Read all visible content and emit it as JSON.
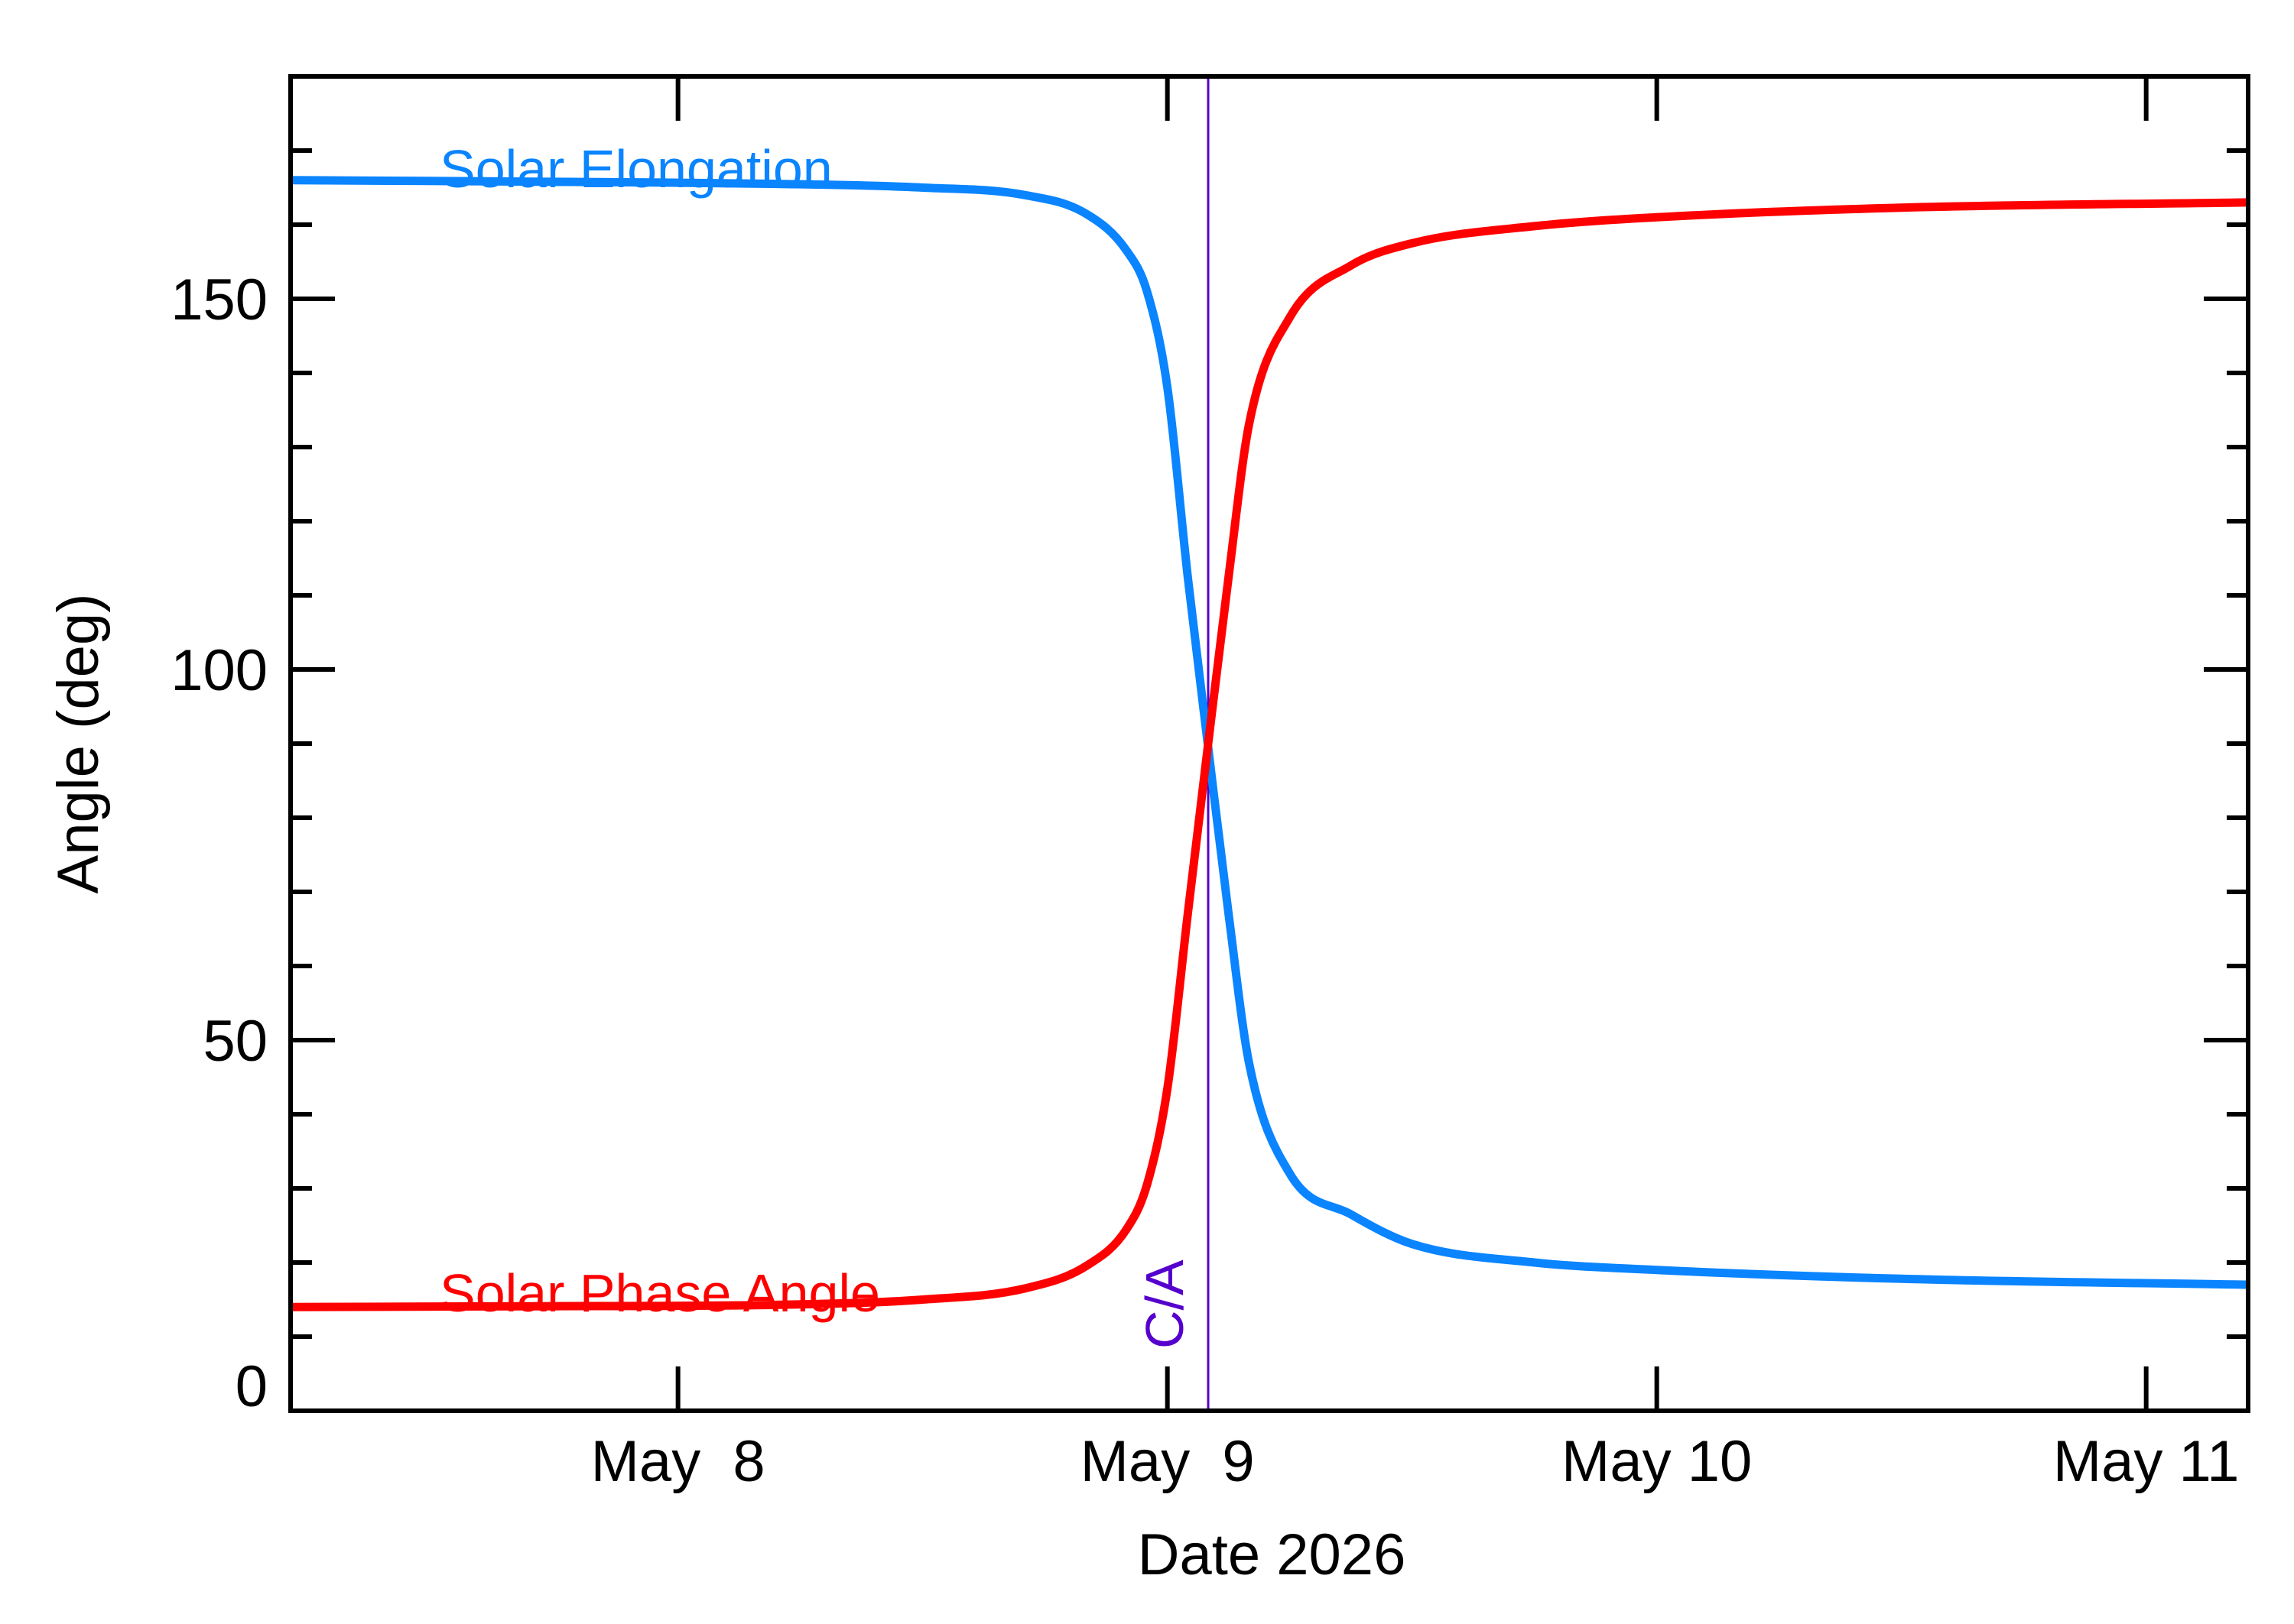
{
  "chart_data": {
    "type": "line",
    "xlabel": "Date 2026",
    "ylabel": "Angle (deg)",
    "x_axis": {
      "start": "2026-05-07 05:00",
      "end": "2026-05-11 05:00",
      "tick_labels": [
        "May  8",
        "May  9",
        "May 10",
        "May 11"
      ],
      "tick_dates": [
        "2026-05-08",
        "2026-05-09",
        "2026-05-10",
        "2026-05-11"
      ],
      "minor_ticks": "none"
    },
    "y_axis": {
      "ylim": [
        0,
        180
      ],
      "major_ticks": [
        0,
        50,
        100,
        150
      ],
      "tick_labels": [
        "0",
        "50",
        "100",
        "150"
      ],
      "minor_step": 10
    },
    "grid": false,
    "legend": "inline text labels near the left of each curve",
    "closest_approach": {
      "label": "C/A",
      "date": "2026-05-09 02:00",
      "color": "#5500cc"
    },
    "series": [
      {
        "name": "Solar Elongation",
        "color": "#0a84ff",
        "points": [
          [
            "2026-05-07 05:00",
            166.0
          ],
          [
            "2026-05-07 17:00",
            165.8
          ],
          [
            "2026-05-08 05:00",
            165.5
          ],
          [
            "2026-05-08 12:00",
            165.0
          ],
          [
            "2026-05-08 17:00",
            164.0
          ],
          [
            "2026-05-08 20:00",
            161.5
          ],
          [
            "2026-05-08 22:00",
            156.5
          ],
          [
            "2026-05-08 23:00",
            151.0
          ],
          [
            "2026-05-09 00:00",
            138.0
          ],
          [
            "2026-05-09 01:00",
            112.5
          ],
          [
            "2026-05-09 02:00",
            89.5
          ],
          [
            "2026-05-09 03:00",
            67.0
          ],
          [
            "2026-05-09 04:00",
            47.0
          ],
          [
            "2026-05-09 06:00",
            32.0
          ],
          [
            "2026-05-09 09:00",
            26.5
          ],
          [
            "2026-05-09 12:00",
            22.5
          ],
          [
            "2026-05-09 18:00",
            20.0
          ],
          [
            "2026-05-10 00:00",
            19.0
          ],
          [
            "2026-05-10 12:00",
            17.8
          ],
          [
            "2026-05-11 05:00",
            17.0
          ]
        ]
      },
      {
        "name": "Solar Phase Angle",
        "color": "#ff0000",
        "points": [
          [
            "2026-05-07 05:00",
            14.0
          ],
          [
            "2026-05-07 17:00",
            14.1
          ],
          [
            "2026-05-08 05:00",
            14.3
          ],
          [
            "2026-05-08 12:00",
            15.0
          ],
          [
            "2026-05-08 17:00",
            16.5
          ],
          [
            "2026-05-08 20:00",
            19.5
          ],
          [
            "2026-05-08 22:00",
            24.5
          ],
          [
            "2026-05-08 23:00",
            30.5
          ],
          [
            "2026-05-09 00:00",
            43.5
          ],
          [
            "2026-05-09 01:00",
            67.0
          ],
          [
            "2026-05-09 02:00",
            90.0
          ],
          [
            "2026-05-09 03:00",
            112.5
          ],
          [
            "2026-05-09 04:00",
            133.0
          ],
          [
            "2026-05-09 06:00",
            147.5
          ],
          [
            "2026-05-09 09:00",
            154.5
          ],
          [
            "2026-05-09 12:00",
            157.5
          ],
          [
            "2026-05-09 18:00",
            159.8
          ],
          [
            "2026-05-10 00:00",
            161.0
          ],
          [
            "2026-05-10 12:00",
            162.3
          ],
          [
            "2026-05-11 05:00",
            163.0
          ]
        ]
      }
    ]
  }
}
